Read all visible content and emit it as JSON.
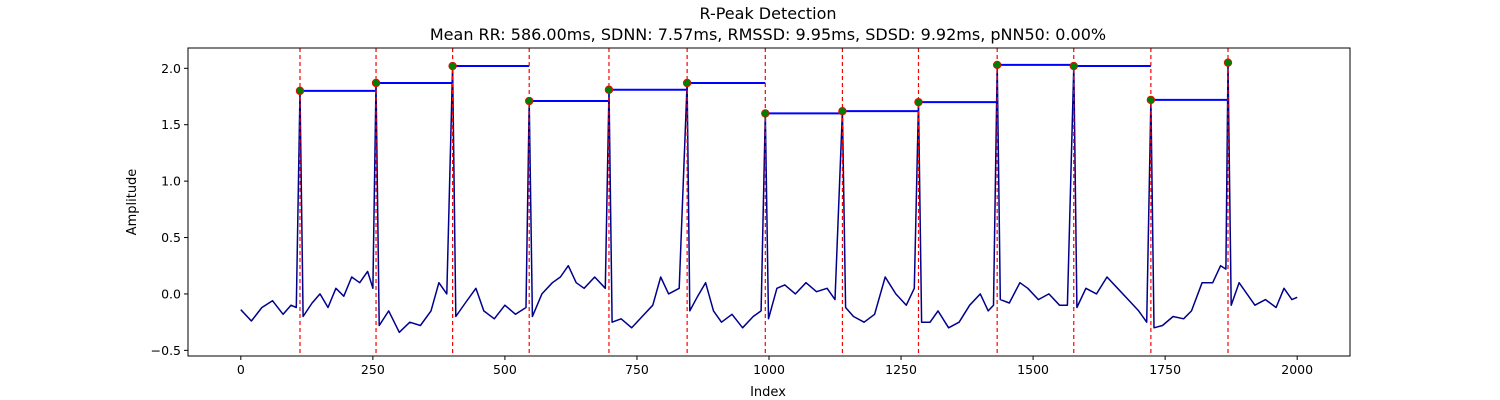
{
  "chart_data": {
    "type": "line",
    "title": "R-Peak Detection",
    "subtitle": "Mean RR: 586.00ms, SDNN: 7.57ms, RMSSD: 9.95ms, SDSD: 9.92ms, pNN50: 0.00%",
    "xlabel": "Index",
    "ylabel": "Amplitude",
    "xlim": [
      -100,
      2100
    ],
    "ylim": [
      -0.55,
      2.18
    ],
    "xticks": [
      0,
      250,
      500,
      750,
      1000,
      1250,
      1500,
      1750,
      2000
    ],
    "yticks": [
      -0.5,
      0.0,
      0.5,
      1.0,
      1.5,
      2.0
    ],
    "ytick_labels": [
      "−0.5",
      "0.0",
      "0.5",
      "1.0",
      "1.5",
      "2.0"
    ],
    "grid": false,
    "colors": {
      "signal": "#00008b",
      "peak_lines": "#ff0000",
      "peak_markers": "#008000",
      "rr_segments": "#0000ff"
    },
    "peaks": [
      {
        "x": 112,
        "y": 1.8
      },
      {
        "x": 256,
        "y": 1.87
      },
      {
        "x": 401,
        "y": 2.02
      },
      {
        "x": 546,
        "y": 1.71
      },
      {
        "x": 697,
        "y": 1.81
      },
      {
        "x": 845,
        "y": 1.87
      },
      {
        "x": 993,
        "y": 1.6
      },
      {
        "x": 1139,
        "y": 1.62
      },
      {
        "x": 1283,
        "y": 1.7
      },
      {
        "x": 1432,
        "y": 2.03
      },
      {
        "x": 1577,
        "y": 2.02
      },
      {
        "x": 1723,
        "y": 1.72
      },
      {
        "x": 1869,
        "y": 2.05
      }
    ],
    "rr_segments": [
      {
        "x0": 112,
        "x1": 256,
        "y": 1.8
      },
      {
        "x0": 256,
        "x1": 401,
        "y": 1.87
      },
      {
        "x0": 401,
        "x1": 546,
        "y": 2.02
      },
      {
        "x0": 546,
        "x1": 697,
        "y": 1.71
      },
      {
        "x0": 697,
        "x1": 845,
        "y": 1.81
      },
      {
        "x0": 845,
        "x1": 993,
        "y": 1.87
      },
      {
        "x0": 993,
        "x1": 1139,
        "y": 1.6
      },
      {
        "x0": 1139,
        "x1": 1283,
        "y": 1.62
      },
      {
        "x0": 1283,
        "x1": 1432,
        "y": 1.7
      },
      {
        "x0": 1432,
        "x1": 1577,
        "y": 2.03
      },
      {
        "x0": 1577,
        "x1": 1723,
        "y": 2.02
      },
      {
        "x0": 1723,
        "x1": 1869,
        "y": 1.72
      }
    ],
    "signal_points": [
      [
        0,
        -0.14
      ],
      [
        20,
        -0.24
      ],
      [
        40,
        -0.12
      ],
      [
        60,
        -0.06
      ],
      [
        80,
        -0.18
      ],
      [
        95,
        -0.1
      ],
      [
        105,
        -0.12
      ],
      [
        112,
        1.8
      ],
      [
        118,
        -0.2
      ],
      [
        135,
        -0.08
      ],
      [
        150,
        0.0
      ],
      [
        165,
        -0.12
      ],
      [
        180,
        0.05
      ],
      [
        195,
        -0.02
      ],
      [
        210,
        0.15
      ],
      [
        225,
        0.1
      ],
      [
        240,
        0.2
      ],
      [
        250,
        0.05
      ],
      [
        256,
        1.87
      ],
      [
        262,
        -0.28
      ],
      [
        280,
        -0.15
      ],
      [
        300,
        -0.34
      ],
      [
        320,
        -0.25
      ],
      [
        340,
        -0.28
      ],
      [
        360,
        -0.15
      ],
      [
        375,
        0.1
      ],
      [
        390,
        0.0
      ],
      [
        401,
        2.02
      ],
      [
        407,
        -0.2
      ],
      [
        425,
        -0.08
      ],
      [
        445,
        0.05
      ],
      [
        460,
        -0.15
      ],
      [
        480,
        -0.22
      ],
      [
        500,
        -0.1
      ],
      [
        520,
        -0.18
      ],
      [
        540,
        -0.12
      ],
      [
        546,
        1.71
      ],
      [
        552,
        -0.2
      ],
      [
        570,
        0.0
      ],
      [
        590,
        0.1
      ],
      [
        605,
        0.15
      ],
      [
        620,
        0.25
      ],
      [
        635,
        0.1
      ],
      [
        650,
        0.05
      ],
      [
        670,
        0.15
      ],
      [
        690,
        0.05
      ],
      [
        697,
        1.81
      ],
      [
        703,
        -0.25
      ],
      [
        720,
        -0.22
      ],
      [
        740,
        -0.3
      ],
      [
        760,
        -0.2
      ],
      [
        780,
        -0.1
      ],
      [
        795,
        0.15
      ],
      [
        810,
        0.0
      ],
      [
        830,
        0.05
      ],
      [
        845,
        1.87
      ],
      [
        850,
        -0.15
      ],
      [
        865,
        -0.02
      ],
      [
        880,
        0.1
      ],
      [
        895,
        -0.15
      ],
      [
        910,
        -0.25
      ],
      [
        930,
        -0.18
      ],
      [
        950,
        -0.3
      ],
      [
        970,
        -0.2
      ],
      [
        985,
        -0.15
      ],
      [
        993,
        1.6
      ],
      [
        999,
        -0.22
      ],
      [
        1015,
        0.05
      ],
      [
        1030,
        0.08
      ],
      [
        1050,
        0.0
      ],
      [
        1070,
        0.1
      ],
      [
        1090,
        0.02
      ],
      [
        1110,
        0.05
      ],
      [
        1125,
        -0.05
      ],
      [
        1139,
        1.62
      ],
      [
        1145,
        -0.12
      ],
      [
        1160,
        -0.2
      ],
      [
        1180,
        -0.25
      ],
      [
        1200,
        -0.18
      ],
      [
        1220,
        0.15
      ],
      [
        1240,
        0.0
      ],
      [
        1260,
        -0.1
      ],
      [
        1275,
        0.05
      ],
      [
        1283,
        1.7
      ],
      [
        1289,
        -0.25
      ],
      [
        1305,
        -0.25
      ],
      [
        1320,
        -0.15
      ],
      [
        1340,
        -0.3
      ],
      [
        1360,
        -0.25
      ],
      [
        1380,
        -0.1
      ],
      [
        1400,
        0.0
      ],
      [
        1415,
        -0.15
      ],
      [
        1425,
        -0.1
      ],
      [
        1432,
        2.03
      ],
      [
        1438,
        -0.05
      ],
      [
        1455,
        -0.08
      ],
      [
        1475,
        0.1
      ],
      [
        1490,
        0.05
      ],
      [
        1510,
        -0.05
      ],
      [
        1530,
        0.0
      ],
      [
        1550,
        -0.1
      ],
      [
        1565,
        -0.1
      ],
      [
        1577,
        2.02
      ],
      [
        1583,
        -0.12
      ],
      [
        1600,
        0.05
      ],
      [
        1620,
        0.0
      ],
      [
        1640,
        0.15
      ],
      [
        1660,
        0.05
      ],
      [
        1680,
        -0.05
      ],
      [
        1700,
        -0.15
      ],
      [
        1715,
        -0.25
      ],
      [
        1723,
        1.72
      ],
      [
        1729,
        -0.3
      ],
      [
        1745,
        -0.28
      ],
      [
        1765,
        -0.2
      ],
      [
        1785,
        -0.22
      ],
      [
        1800,
        -0.15
      ],
      [
        1820,
        0.1
      ],
      [
        1840,
        0.1
      ],
      [
        1855,
        0.25
      ],
      [
        1865,
        0.22
      ],
      [
        1869,
        2.05
      ],
      [
        1875,
        -0.1
      ],
      [
        1890,
        0.1
      ],
      [
        1905,
        0.0
      ],
      [
        1920,
        -0.1
      ],
      [
        1940,
        -0.05
      ],
      [
        1960,
        -0.12
      ],
      [
        1975,
        0.05
      ],
      [
        1990,
        -0.05
      ],
      [
        2000,
        -0.03
      ]
    ]
  }
}
